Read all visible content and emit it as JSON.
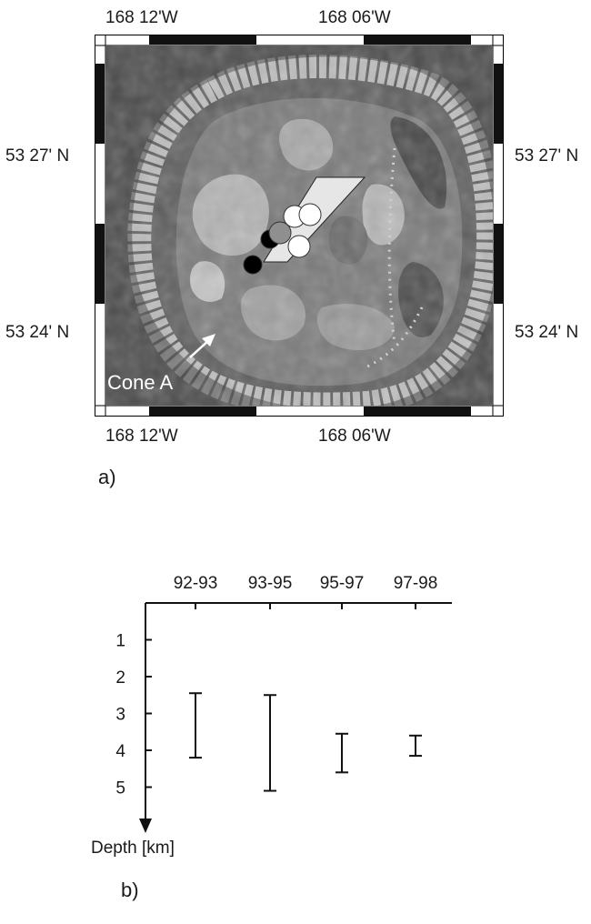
{
  "figure": {
    "panel_a_label": "a)",
    "panel_b_label": "b)"
  },
  "map": {
    "lon_labels": [
      "168 12'W",
      "168 06'W"
    ],
    "lat_labels": [
      "53 27' N",
      "53 24' N"
    ],
    "annotation": "Cone A",
    "sources": [
      {
        "color": "#000000"
      },
      {
        "color": "#000000"
      },
      {
        "color": "#8f8f8f"
      },
      {
        "color": "#ffffff"
      },
      {
        "color": "#ffffff"
      },
      {
        "color": "#ffffff"
      }
    ]
  },
  "chart_data": {
    "type": "errorbar",
    "categories": [
      "92-93",
      "93-95",
      "95-97",
      "97-98"
    ],
    "ranges": [
      {
        "min": 2.45,
        "max": 4.2
      },
      {
        "min": 2.5,
        "max": 5.1
      },
      {
        "min": 3.55,
        "max": 4.6
      },
      {
        "min": 3.6,
        "max": 4.15
      }
    ],
    "yticks": [
      1,
      2,
      3,
      4,
      5
    ],
    "ylabel": "Depth [km]",
    "y_inverted": true,
    "ylim": [
      0,
      6
    ]
  }
}
